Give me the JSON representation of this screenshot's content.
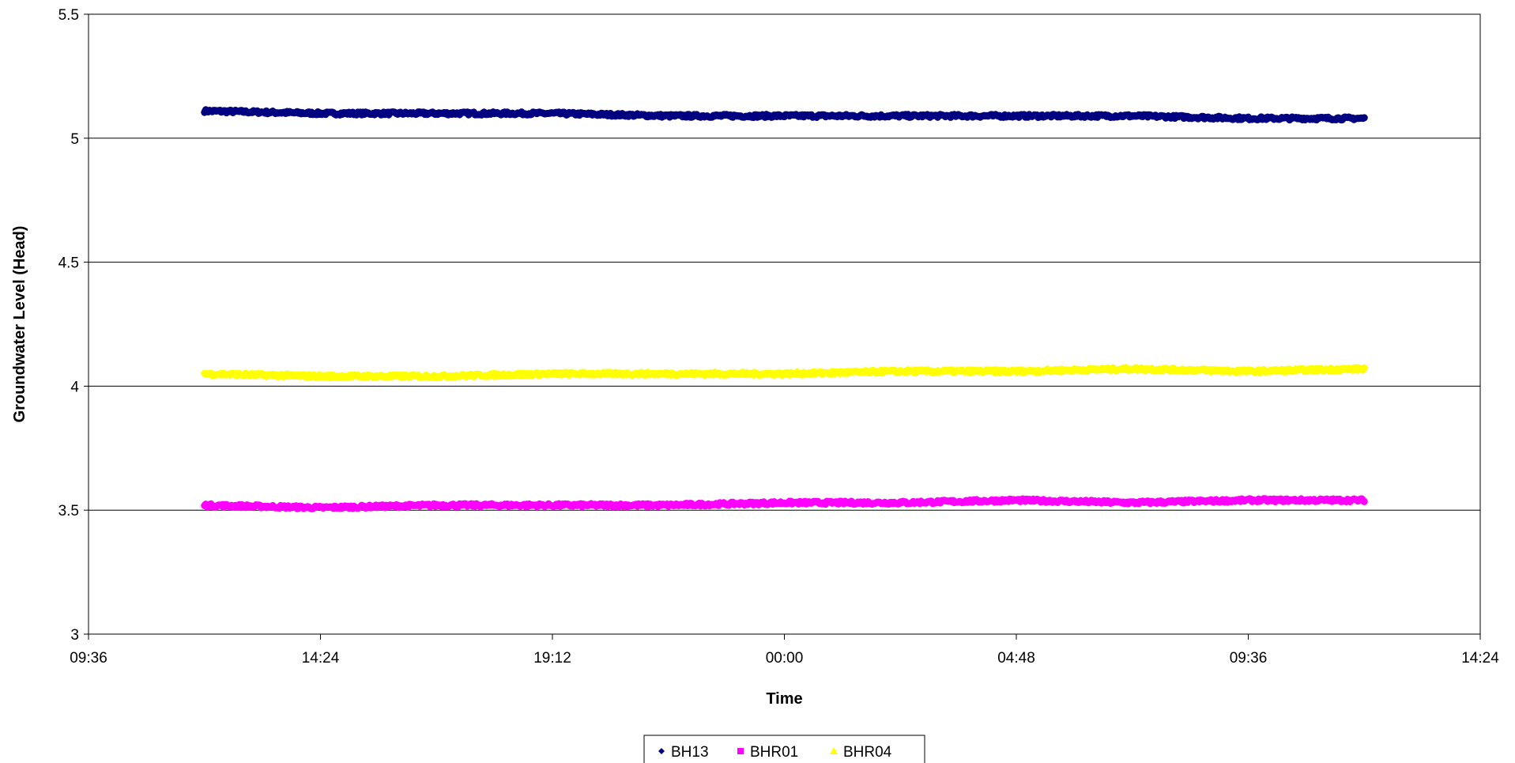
{
  "chart_data": {
    "type": "line",
    "xlabel": "Time",
    "ylabel": "Groundwater Level (Head)",
    "x_ticks": [
      "09:36",
      "14:24",
      "19:12",
      "00:00",
      "04:48",
      "09:36",
      "14:24"
    ],
    "x_range_hours": [
      0,
      28.8
    ],
    "y_ticks": [
      "3",
      "3.5",
      "4",
      "4.5",
      "5",
      "5.5"
    ],
    "ylim": [
      3,
      5.5
    ],
    "grid": "horizontal",
    "legend_position": "bottom-center",
    "series": [
      {
        "name": "BH13",
        "color": "#000080",
        "marker": "diamond",
        "x_hours": [
          2.4,
          4.8,
          7.2,
          9.6,
          12.0,
          14.4,
          16.8,
          19.2,
          21.6,
          24.0,
          26.4
        ],
        "values": [
          5.11,
          5.1,
          5.1,
          5.1,
          5.09,
          5.09,
          5.09,
          5.09,
          5.09,
          5.08,
          5.08
        ]
      },
      {
        "name": "BHR01",
        "color": "#ff00ff",
        "marker": "square",
        "x_hours": [
          2.4,
          4.8,
          7.2,
          9.6,
          12.0,
          14.4,
          16.8,
          19.2,
          21.6,
          24.0,
          26.4
        ],
        "values": [
          3.52,
          3.51,
          3.52,
          3.52,
          3.52,
          3.53,
          3.53,
          3.54,
          3.53,
          3.54,
          3.54
        ]
      },
      {
        "name": "BHR04",
        "color": "#ffff00",
        "marker": "triangle",
        "x_hours": [
          2.4,
          4.8,
          7.2,
          9.6,
          12.0,
          14.4,
          16.8,
          19.2,
          21.6,
          24.0,
          26.4
        ],
        "values": [
          4.05,
          4.04,
          4.04,
          4.05,
          4.05,
          4.05,
          4.06,
          4.06,
          4.07,
          4.06,
          4.07
        ]
      }
    ]
  }
}
